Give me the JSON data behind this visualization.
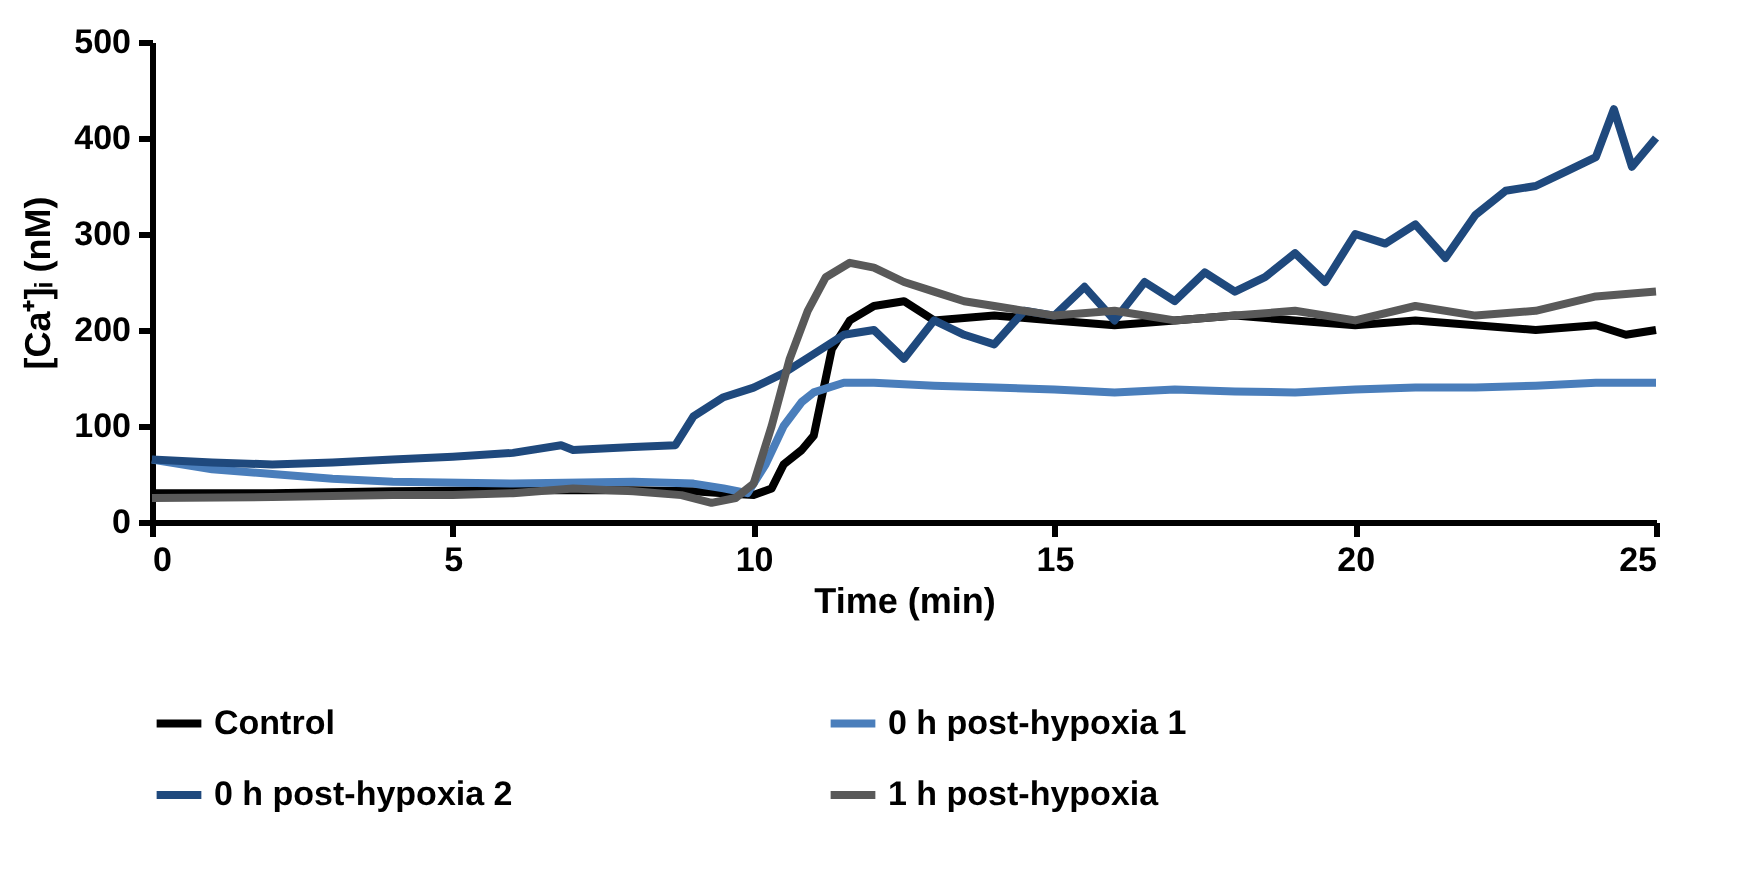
{
  "chart_data": {
    "type": "line",
    "xlabel": "Time (min)",
    "ylabel": "[Ca⁺]ᵢ (nM)",
    "xlim": [
      0,
      25
    ],
    "xticks": [
      0,
      5,
      10,
      15,
      20,
      25
    ],
    "ylim": [
      0,
      500
    ],
    "yticks": [
      0,
      100,
      200,
      300,
      400,
      500
    ],
    "grid": false,
    "legend": "bottom",
    "marker": "none",
    "line_style": "solid",
    "series": [
      {
        "name": "Control",
        "color": "#000000",
        "x": [
          0,
          2,
          4,
          6,
          8,
          9,
          9.5,
          10,
          10.3,
          10.5,
          10.8,
          11,
          11.3,
          11.6,
          12,
          12.5,
          13,
          14,
          15,
          16,
          17,
          18,
          19,
          20,
          21,
          22,
          23,
          24,
          24.5,
          25
        ],
        "values": [
          30,
          30,
          32,
          33,
          33,
          32,
          30,
          28,
          35,
          60,
          75,
          90,
          180,
          210,
          225,
          230,
          210,
          215,
          210,
          205,
          210,
          215,
          210,
          205,
          210,
          205,
          200,
          205,
          195,
          200
        ]
      },
      {
        "name": "0 h post-hypoxia 1",
        "color": "#4a7ebb",
        "x": [
          0,
          1,
          2,
          3,
          4,
          6,
          8,
          9,
          9.5,
          9.9,
          10.2,
          10.5,
          10.8,
          11,
          11.5,
          12,
          13,
          14,
          15,
          16,
          17,
          18,
          19,
          20,
          21,
          22,
          23,
          24,
          25
        ],
        "values": [
          65,
          55,
          50,
          45,
          42,
          40,
          42,
          40,
          35,
          30,
          60,
          100,
          125,
          135,
          145,
          145,
          142,
          140,
          138,
          135,
          138,
          136,
          135,
          138,
          140,
          140,
          142,
          145,
          145
        ]
      },
      {
        "name": "0 h post-hypoxia 2",
        "color": "#1f497d",
        "x": [
          0,
          1,
          2,
          3,
          4,
          5,
          6,
          6.8,
          7,
          8,
          8.7,
          9,
          9.5,
          10,
          10.5,
          11,
          11.5,
          12,
          12.5,
          13,
          13.5,
          14,
          14.5,
          15,
          15.5,
          16,
          16.5,
          17,
          17.5,
          18,
          18.5,
          19,
          19.5,
          20,
          20.5,
          21,
          21.5,
          22,
          22.5,
          23,
          23.5,
          24,
          24.3,
          24.6,
          25
        ],
        "values": [
          65,
          62,
          60,
          62,
          65,
          68,
          72,
          80,
          75,
          78,
          80,
          110,
          130,
          140,
          155,
          175,
          195,
          200,
          170,
          210,
          195,
          185,
          220,
          215,
          245,
          210,
          250,
          230,
          260,
          240,
          255,
          280,
          250,
          300,
          290,
          310,
          275,
          320,
          345,
          350,
          365,
          380,
          430,
          370,
          400
        ]
      },
      {
        "name": "1 h post-hypoxia",
        "color": "#595959",
        "x": [
          0,
          2,
          4,
          5,
          6,
          7,
          8,
          8.8,
          9.3,
          9.7,
          10,
          10.3,
          10.6,
          10.9,
          11.2,
          11.6,
          12,
          12.5,
          13,
          13.5,
          14,
          15,
          16,
          17,
          18,
          19,
          20,
          21,
          22,
          23,
          24,
          25
        ],
        "values": [
          25,
          26,
          28,
          28,
          30,
          35,
          32,
          28,
          20,
          25,
          40,
          100,
          170,
          220,
          255,
          270,
          265,
          250,
          240,
          230,
          225,
          215,
          220,
          210,
          215,
          220,
          210,
          225,
          215,
          220,
          235,
          240
        ]
      }
    ]
  }
}
